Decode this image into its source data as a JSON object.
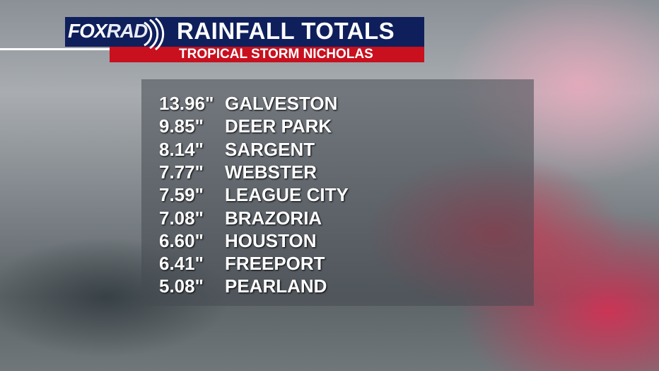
{
  "header": {
    "logo_left": "FOX",
    "logo_right": "RAD",
    "title": "RAINFALL TOTALS",
    "subtitle": "TROPICAL STORM NICHOLAS"
  },
  "table": {
    "rows": [
      {
        "amount": "13.96\"",
        "location": "GALVESTON"
      },
      {
        "amount": "9.85\"",
        "location": "DEER PARK"
      },
      {
        "amount": "8.14\"",
        "location": "SARGENT"
      },
      {
        "amount": "7.77\"",
        "location": "WEBSTER"
      },
      {
        "amount": "7.59\"",
        "location": "LEAGUE CITY"
      },
      {
        "amount": "7.08\"",
        "location": "BRAZORIA"
      },
      {
        "amount": "6.60\"",
        "location": "HOUSTON"
      },
      {
        "amount": "6.41\"",
        "location": "FREEPORT"
      },
      {
        "amount": "5.08\"",
        "location": "PEARLAND"
      }
    ]
  }
}
